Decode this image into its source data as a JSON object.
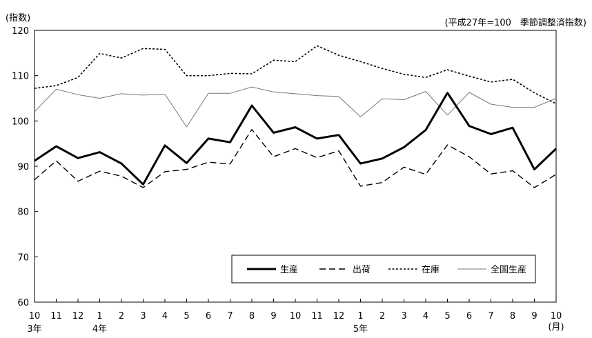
{
  "chart_data": {
    "type": "line",
    "y_unit_label": "(指数)",
    "note": "(平成27年=100　季節調整済指数)",
    "x_unit_label": "(月)",
    "ylim": [
      60,
      120
    ],
    "y_ticks": [
      "60",
      "70",
      "80",
      "90",
      "100",
      "110",
      "120"
    ],
    "categories": [
      "10",
      "11",
      "12",
      "1",
      "2",
      "3",
      "4",
      "5",
      "6",
      "7",
      "8",
      "9",
      "10",
      "11",
      "12",
      "1",
      "2",
      "3",
      "4",
      "5",
      "6",
      "7",
      "8",
      "9",
      "10"
    ],
    "year_labels": [
      {
        "index": 0,
        "label": "3年"
      },
      {
        "index": 3,
        "label": "4年"
      },
      {
        "index": 15,
        "label": "5年"
      }
    ],
    "grid": false,
    "legend_position": "bottom-right",
    "series": [
      {
        "name": "生産",
        "style": "thick-solid",
        "color": "#000000",
        "values": [
          91.2,
          94.4,
          91.8,
          93.1,
          90.6,
          86.0,
          94.6,
          90.7,
          96.1,
          95.3,
          103.4,
          97.4,
          98.6,
          96.1,
          96.9,
          90.6,
          91.7,
          94.2,
          98.0,
          106.2,
          98.9,
          97.1,
          98.5,
          89.3,
          93.9
        ]
      },
      {
        "name": "出荷",
        "style": "dashed",
        "color": "#000000",
        "values": [
          87.0,
          91.2,
          86.7,
          88.9,
          87.8,
          85.3,
          88.8,
          89.3,
          90.9,
          90.5,
          98.1,
          92.1,
          93.9,
          91.9,
          93.4,
          85.6,
          86.4,
          89.8,
          88.2,
          94.7,
          92.1,
          88.3,
          89.0,
          85.3,
          88.2
        ]
      },
      {
        "name": "在庫",
        "style": "dotted",
        "color": "#000000",
        "values": [
          107.2,
          107.8,
          109.6,
          114.9,
          113.9,
          116.0,
          115.8,
          110.0,
          110.0,
          110.5,
          110.4,
          113.4,
          113.1,
          116.6,
          114.5,
          113.1,
          111.6,
          110.3,
          109.6,
          111.3,
          109.9,
          108.6,
          109.2,
          106.2,
          103.8
        ]
      },
      {
        "name": "全国生産",
        "style": "thin-solid",
        "color": "#777777",
        "values": [
          102.0,
          107.0,
          105.8,
          105.0,
          106.0,
          105.7,
          105.9,
          98.7,
          106.1,
          106.1,
          107.5,
          106.4,
          106.0,
          105.6,
          105.4,
          100.9,
          104.9,
          104.7,
          106.5,
          101.3,
          106.3,
          103.7,
          103.0,
          103.0,
          105.0
        ]
      }
    ]
  }
}
